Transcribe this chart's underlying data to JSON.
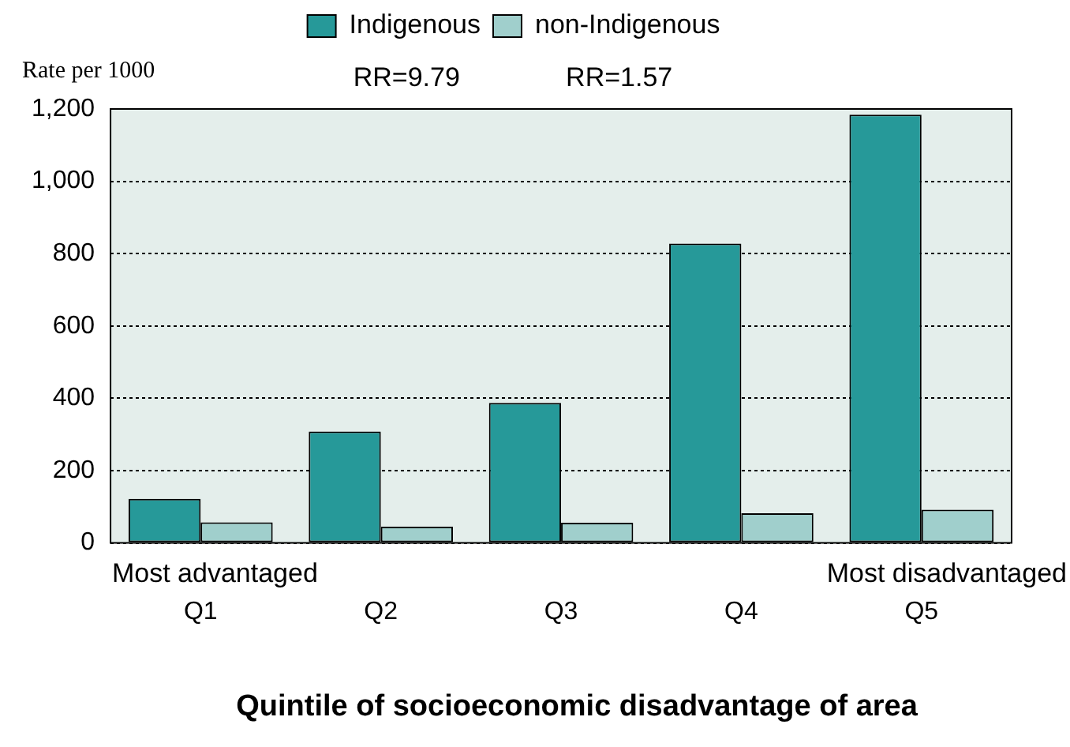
{
  "chart_data": {
    "type": "bar",
    "ylabel": "Rate per 1000",
    "xlabel": "Quintile of socioeconomic disadvantage of area",
    "categories": [
      "Q1",
      "Q2",
      "Q3",
      "Q4",
      "Q5"
    ],
    "series": [
      {
        "name": "Indigenous",
        "color": "#269999",
        "values": [
          122,
          308,
          387,
          828,
          1184
        ]
      },
      {
        "name": "non-Indigenous",
        "color": "#a0cfcc",
        "values": [
          57,
          45,
          56,
          82,
          92
        ]
      }
    ],
    "ylim": [
      0,
      1200
    ],
    "yticks": [
      0,
      {
        "value": 200,
        "label": "200"
      },
      {
        "value": 400,
        "label": "400"
      },
      {
        "value": 600,
        "label": "600"
      },
      {
        "value": 800,
        "label": "800"
      },
      {
        "value": 1000,
        "label": "1,000"
      },
      {
        "value": 1200,
        "label": "1,200"
      }
    ],
    "grid": "y",
    "legend": "top",
    "annotations": [
      "RR=9.79",
      "RR=1.57",
      "Most advantaged",
      "Most disadvantaged"
    ]
  }
}
